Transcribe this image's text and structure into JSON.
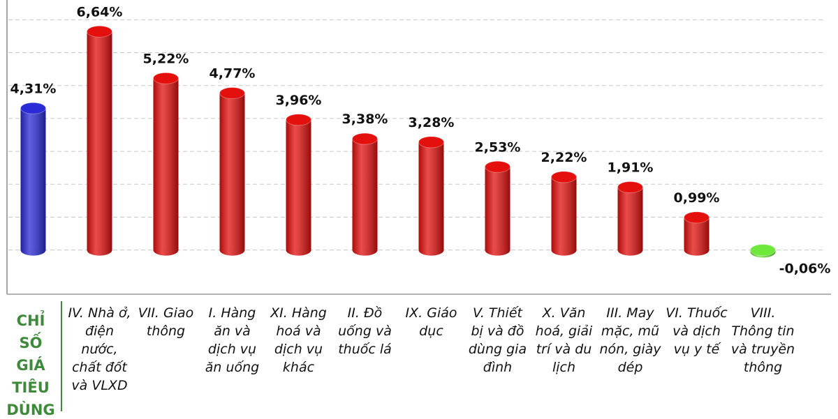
{
  "chart_data": {
    "type": "bar",
    "categories": [
      "CHỈ SỐ GIÁ TIÊU DÙNG",
      "IV. Nhà ở, điện nước, chất đốt và VLXD",
      "VII. Giao thông",
      "I. Hàng ăn và dịch vụ ăn uống",
      "XI. Hàng hoá và dịch vụ khác",
      "II. Đồ uống và thuốc lá",
      "IX. Giáo dục",
      "V. Thiết bị và đồ dùng gia đình",
      "X. Văn hoá, giải trí và du lịch",
      "III. May mặc, mũ nón, giày dép",
      "VI. Thuốc và dịch vụ y tế",
      "VIII. Thông tin và truyền thông"
    ],
    "values": [
      4.31,
      6.64,
      5.22,
      4.77,
      3.96,
      3.38,
      3.28,
      2.53,
      2.22,
      1.91,
      0.99,
      -0.06
    ],
    "value_labels": [
      "4,31%",
      "6,64%",
      "5,22%",
      "4,77%",
      "3,96%",
      "3,38%",
      "3,28%",
      "2,53%",
      "2,22%",
      "1,91%",
      "0,99%",
      "-0,06%"
    ],
    "colors": [
      "#2a2ad6",
      "#e3100e",
      "#e3100e",
      "#e3100e",
      "#e3100e",
      "#e3100e",
      "#e3100e",
      "#e3100e",
      "#e3100e",
      "#e3100e",
      "#e3100e",
      "#6ee83a"
    ],
    "ylim": [
      -1.3,
      7.6
    ],
    "yticks": [
      0,
      1,
      2,
      3,
      4,
      5,
      6,
      7
    ],
    "grid": true
  }
}
